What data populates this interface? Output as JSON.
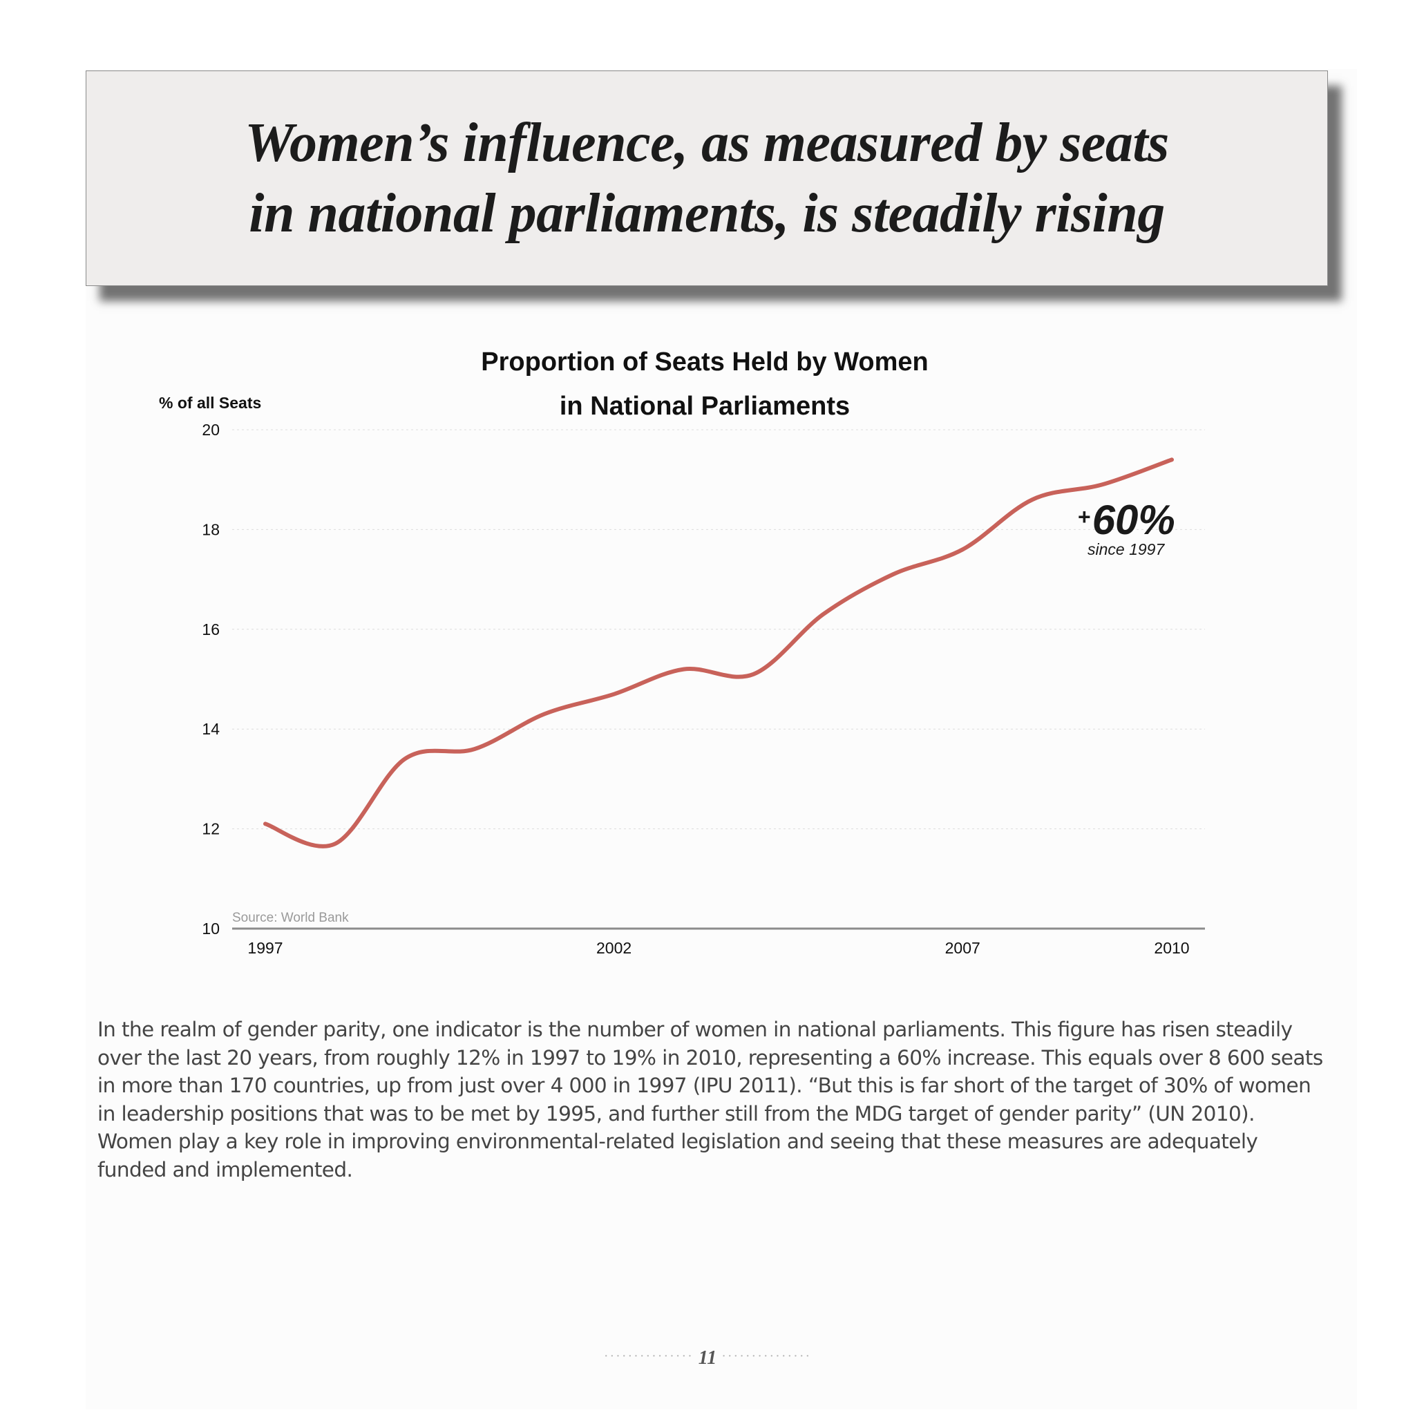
{
  "headline": "Women’s influence, as measured by seats in national parliaments, is steadily rising",
  "chart_data": {
    "type": "line",
    "title_line1": "Proportion of Seats Held by Women",
    "title_line2": "in National Parliaments",
    "ylabel": "% of all Seats",
    "xlabel": "",
    "ylim": [
      10,
      20
    ],
    "yticks": [
      "10",
      "12",
      "14",
      "16",
      "18",
      "20"
    ],
    "xticks": [
      "1997",
      "2002",
      "2007",
      "2010"
    ],
    "x": [
      1997,
      1998,
      1999,
      2000,
      2001,
      2002,
      2003,
      2004,
      2005,
      2006,
      2007,
      2008,
      2009,
      2010
    ],
    "series": [
      {
        "values": [
          12.1,
          11.7,
          13.4,
          13.6,
          14.3,
          14.7,
          15.2,
          15.1,
          16.3,
          17.1,
          17.6,
          18.6,
          18.9,
          19.4
        ]
      }
    ],
    "grid": true,
    "line_color": "#c8625a",
    "annotation_value": "+60%",
    "annotation_sub": "since 1997",
    "source": "Source: World Bank"
  },
  "body_text": "In the realm of gender parity, one indicator is the number of women in national parliaments. This ﬁgure has risen steadily over the last 20 years, from roughly 12% in 1997 to 19% in 2010, representing a 60% increase. This equals over 8 600 seats in more than 170 countries, up from just over 4 000 in 1997 (IPU 2011). “But this is far short of the target of 30% of women in leadership positions that was to be met by 1995, and further still from the MDG target of gender parity” (UN 2010). Women play a key role in improving environmental-related legislation and seeing that these measures are adequately funded and implemented.",
  "page_number": "11"
}
